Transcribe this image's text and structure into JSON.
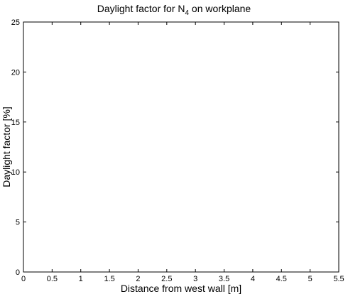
{
  "chart_data": {
    "type": "line",
    "title_main": "Daylight factor for N",
    "title_sub": "4",
    "title_tail": " on workplane",
    "xlabel": "Distance from west wall [m]",
    "ylabel": "Daylight factor [%]",
    "xlim": [
      0,
      5.5
    ],
    "ylim": [
      0,
      25
    ],
    "x_ticks": [
      0,
      0.5,
      1,
      1.5,
      2,
      2.5,
      3,
      3.5,
      4,
      4.5,
      5,
      5.5
    ],
    "x_tick_labels": [
      "0",
      "0.5",
      "1",
      "1.5",
      "2",
      "2.5",
      "3",
      "3.5",
      "4",
      "4.5",
      "5",
      "5.5"
    ],
    "y_ticks": [
      0,
      5,
      10,
      15,
      20,
      25
    ],
    "y_tick_labels": [
      "0",
      "5",
      "10",
      "15",
      "20",
      "25"
    ],
    "grid": false,
    "series": []
  }
}
